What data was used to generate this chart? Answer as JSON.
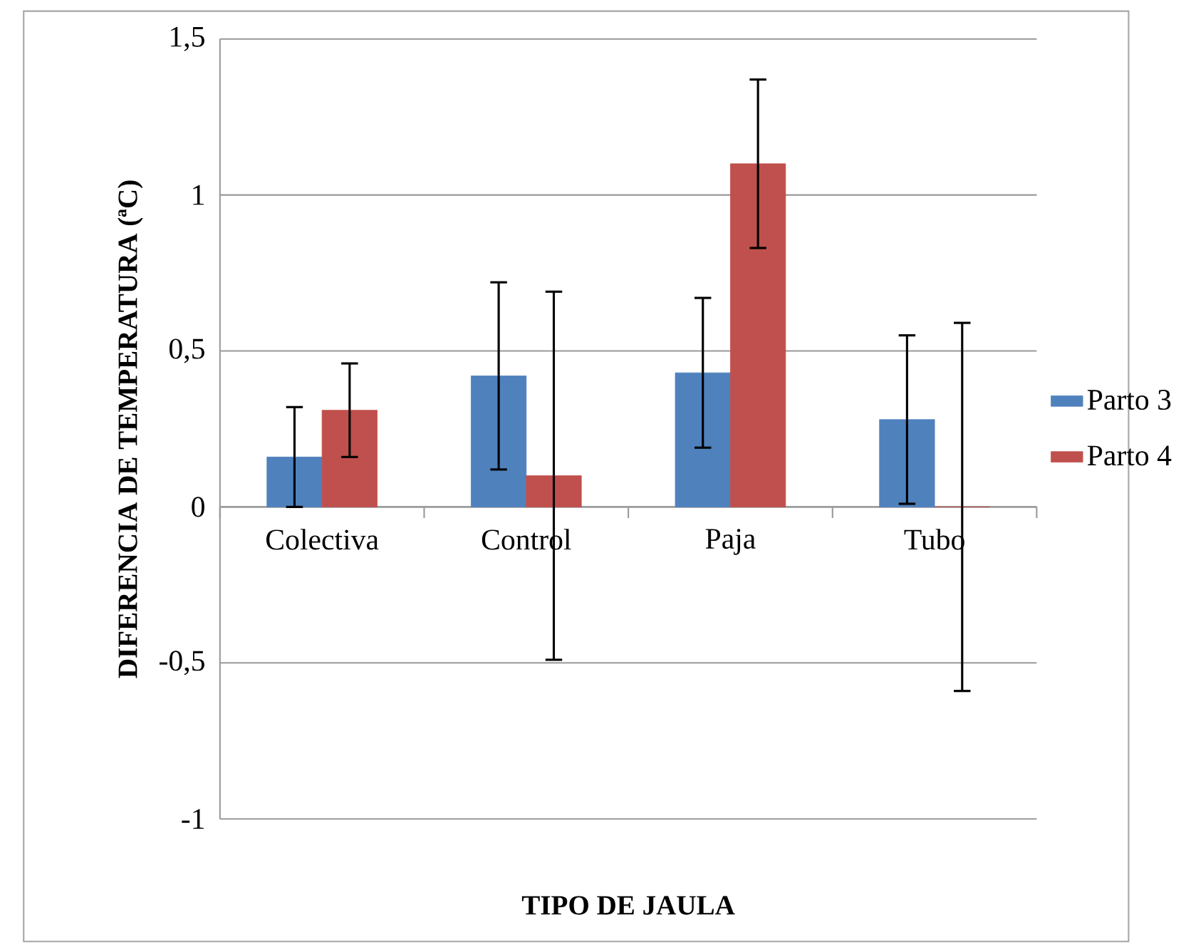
{
  "chart_data": {
    "type": "bar",
    "xlabel": "TIPO DE JAULA",
    "ylabel": "DIFERENCIA DE TEMPERATURA (ªC)",
    "categories": [
      "Colectiva",
      "Control",
      "Paja",
      "Tubo"
    ],
    "series": [
      {
        "name": "Parto 3",
        "color": "#4f81bd",
        "values": [
          0.16,
          0.42,
          0.43,
          0.28
        ],
        "errors": [
          0.16,
          0.3,
          0.24,
          0.27
        ]
      },
      {
        "name": "Parto 4",
        "color": "#c0504d",
        "values": [
          0.31,
          0.1,
          1.1,
          0
        ],
        "errors": [
          0.15,
          0.59,
          0.27,
          0.59
        ]
      }
    ],
    "ylim": [
      -1,
      1.5
    ],
    "yticks": [
      {
        "value": 1.5,
        "label": "1,5"
      },
      1,
      {
        "value": 0.5,
        "label": "0,5"
      },
      0,
      {
        "value": -0.5,
        "label": "-0,5"
      },
      -1
    ],
    "grid": "y",
    "legend": "right"
  }
}
